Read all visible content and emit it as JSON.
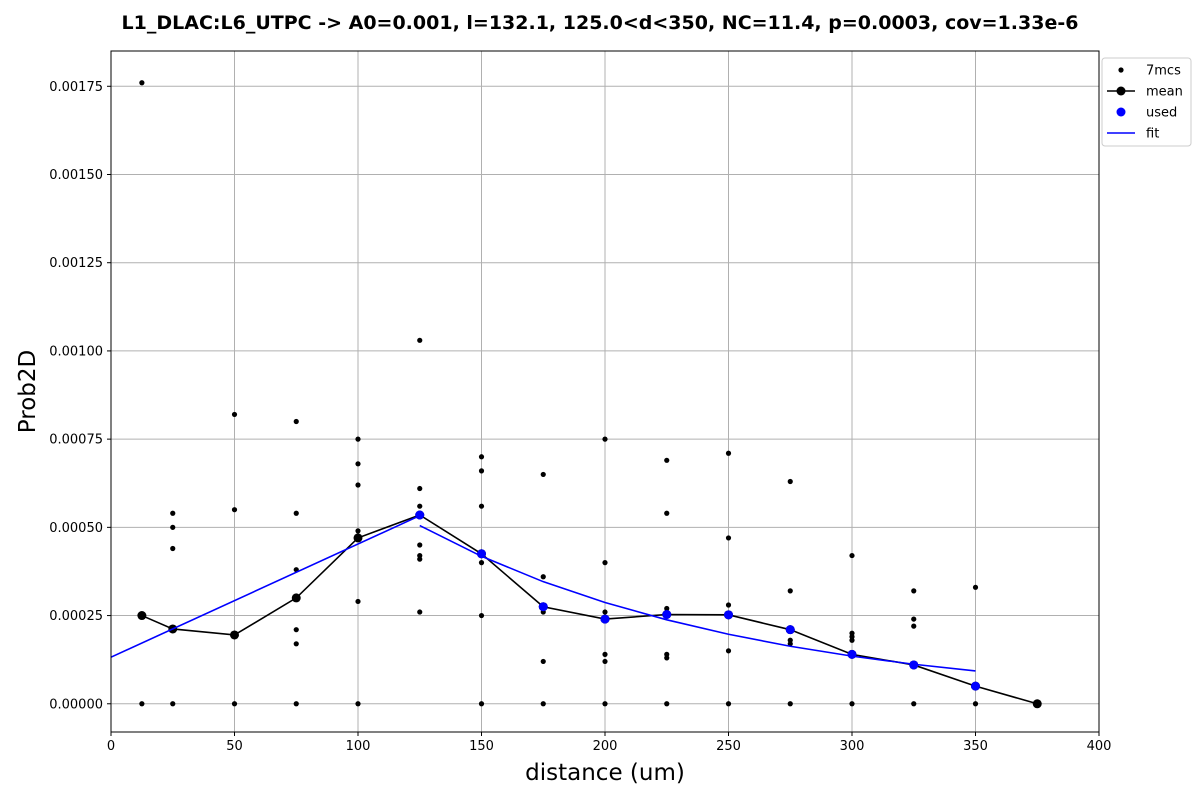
{
  "chart_data": {
    "type": "scatter",
    "title": "L1_DLAC:L6_UTPC -> A0=0.001, l=132.1, 125.0<d<350, NC=11.4, p=0.0003, cov=1.33e-6",
    "xlabel": "distance (um)",
    "ylabel": "Prob2D",
    "xlim": [
      0,
      400
    ],
    "ylim": [
      -8e-05,
      0.00185
    ],
    "x_ticks": [
      "0",
      "50",
      "100",
      "150",
      "200",
      "250",
      "300",
      "350",
      "400"
    ],
    "y_ticks": [
      "0.00000",
      "0.00025",
      "0.00050",
      "0.00075",
      "0.00100",
      "0.00125",
      "0.00150",
      "0.00175"
    ],
    "grid": true,
    "legend_position": "outside-top-right",
    "series": [
      {
        "name": "7mcs",
        "kind": "scatter",
        "color": "#000000",
        "points": [
          [
            12.5,
            0.00176
          ],
          [
            12.5,
            0.0
          ],
          [
            25,
            0.00054
          ],
          [
            25,
            0.0005
          ],
          [
            25,
            0.00044
          ],
          [
            25,
            0.0
          ],
          [
            50,
            0.00082
          ],
          [
            50,
            0.00055
          ],
          [
            50,
            0.0
          ],
          [
            75,
            0.0008
          ],
          [
            75,
            0.00054
          ],
          [
            75,
            0.00038
          ],
          [
            75,
            0.00021
          ],
          [
            75,
            0.00017
          ],
          [
            75,
            0.0
          ],
          [
            100,
            0.00075
          ],
          [
            100,
            0.00068
          ],
          [
            100,
            0.00062
          ],
          [
            100,
            0.00049
          ],
          [
            100,
            0.00029
          ],
          [
            100,
            0.0
          ],
          [
            125,
            0.00103
          ],
          [
            125,
            0.00061
          ],
          [
            125,
            0.00056
          ],
          [
            125,
            0.00045
          ],
          [
            125,
            0.00042
          ],
          [
            125,
            0.00041
          ],
          [
            125,
            0.00026
          ],
          [
            150,
            0.0007
          ],
          [
            150,
            0.00066
          ],
          [
            150,
            0.00056
          ],
          [
            150,
            0.0004
          ],
          [
            150,
            0.00025
          ],
          [
            150,
            0.0
          ],
          [
            175,
            0.00065
          ],
          [
            175,
            0.00036
          ],
          [
            175,
            0.00027
          ],
          [
            175,
            0.00026
          ],
          [
            175,
            0.00012
          ],
          [
            175,
            0.0
          ],
          [
            200,
            0.00075
          ],
          [
            200,
            0.0004
          ],
          [
            200,
            0.00026
          ],
          [
            200,
            0.00014
          ],
          [
            200,
            0.00012
          ],
          [
            200,
            0.0
          ],
          [
            225,
            0.00069
          ],
          [
            225,
            0.00054
          ],
          [
            225,
            0.00027
          ],
          [
            225,
            0.00026
          ],
          [
            225,
            0.00014
          ],
          [
            225,
            0.00013
          ],
          [
            225,
            0.0
          ],
          [
            250,
            0.00071
          ],
          [
            250,
            0.00047
          ],
          [
            250,
            0.00028
          ],
          [
            250,
            0.00025
          ],
          [
            250,
            0.00015
          ],
          [
            250,
            0.0
          ],
          [
            275,
            0.00063
          ],
          [
            275,
            0.00032
          ],
          [
            275,
            0.00021
          ],
          [
            275,
            0.00018
          ],
          [
            275,
            0.00017
          ],
          [
            275,
            0.0
          ],
          [
            300,
            0.00042
          ],
          [
            300,
            0.0002
          ],
          [
            300,
            0.00019
          ],
          [
            300,
            0.00018
          ],
          [
            300,
            0.0
          ],
          [
            325,
            0.00032
          ],
          [
            325,
            0.00024
          ],
          [
            325,
            0.00022
          ],
          [
            325,
            0.0
          ],
          [
            350,
            0.00033
          ],
          [
            350,
            5e-05
          ],
          [
            350,
            0.0
          ],
          [
            375,
            0.0
          ]
        ]
      },
      {
        "name": "mean",
        "kind": "line-marker",
        "color": "#000000",
        "points": [
          [
            12.5,
            0.00025
          ],
          [
            25,
            0.000212
          ],
          [
            50,
            0.000195
          ],
          [
            75,
            0.0003
          ],
          [
            100,
            0.00047
          ],
          [
            125,
            0.000535
          ],
          [
            150,
            0.000425
          ],
          [
            175,
            0.000275
          ],
          [
            200,
            0.00024
          ],
          [
            225,
            0.000253
          ],
          [
            250,
            0.000252
          ],
          [
            275,
            0.00021
          ],
          [
            300,
            0.00014
          ],
          [
            325,
            0.00011
          ],
          [
            350,
            5e-05
          ],
          [
            375,
            0.0
          ]
        ]
      },
      {
        "name": "used",
        "kind": "scatter",
        "color": "#0000ff",
        "points": [
          [
            125,
            0.000535
          ],
          [
            150,
            0.000425
          ],
          [
            175,
            0.000275
          ],
          [
            200,
            0.00024
          ],
          [
            225,
            0.000253
          ],
          [
            250,
            0.000252
          ],
          [
            275,
            0.00021
          ],
          [
            300,
            0.00014
          ],
          [
            325,
            0.00011
          ],
          [
            350,
            5e-05
          ]
        ]
      },
      {
        "name": "fit",
        "kind": "line",
        "color": "#0000ff",
        "segments": [
          [
            [
              0,
              0.000132
            ],
            [
              125,
              0.000533
            ]
          ],
          [
            [
              125,
              0.000505
            ],
            [
              150,
              0.000418
            ],
            [
              175,
              0.000346
            ],
            [
              200,
              0.000287
            ],
            [
              225,
              0.000238
            ],
            [
              250,
              0.000197
            ],
            [
              275,
              0.000163
            ],
            [
              300,
              0.000135
            ],
            [
              325,
              0.000112
            ],
            [
              350,
              9.3e-05
            ]
          ]
        ]
      }
    ]
  }
}
